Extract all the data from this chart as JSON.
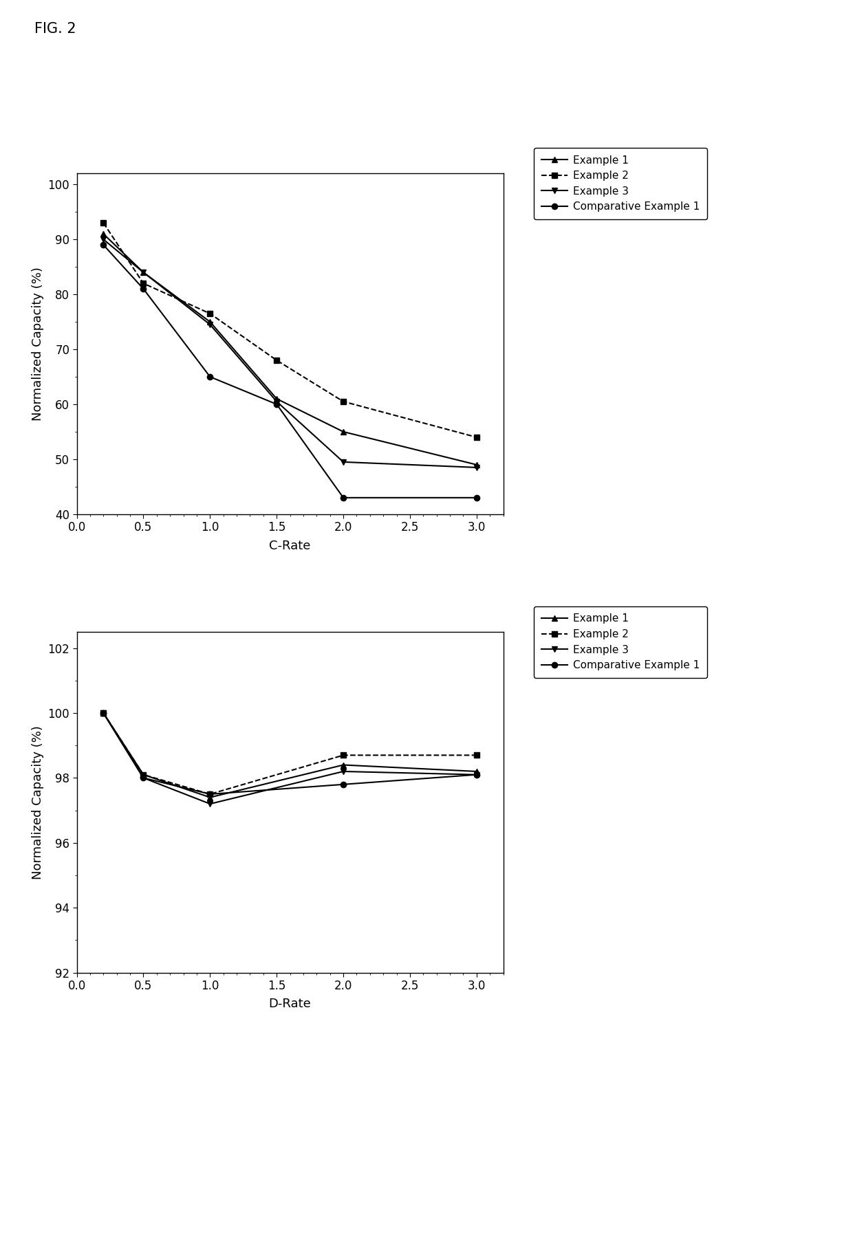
{
  "chart1": {
    "xlabel": "C-Rate",
    "ylabel": "Normalized Capacity (%)",
    "xlim": [
      0.0,
      3.2
    ],
    "ylim": [
      40,
      102
    ],
    "yticks": [
      40,
      50,
      60,
      70,
      80,
      90,
      100
    ],
    "xticks": [
      0.0,
      0.5,
      1.0,
      1.5,
      2.0,
      2.5,
      3.0
    ],
    "series": [
      {
        "label": "Example 1",
        "x": [
          0.2,
          0.5,
          1.0,
          1.5,
          2.0,
          3.0
        ],
        "y": [
          91.0,
          84.0,
          75.0,
          61.0,
          55.0,
          49.0
        ],
        "marker": "^",
        "color": "#000000",
        "linestyle": "-"
      },
      {
        "label": "Example 2",
        "x": [
          0.2,
          0.5,
          1.0,
          1.5,
          2.0,
          3.0
        ],
        "y": [
          93.0,
          82.0,
          76.5,
          68.0,
          60.5,
          54.0
        ],
        "marker": "s",
        "color": "#000000",
        "linestyle": "--"
      },
      {
        "label": "Example 3",
        "x": [
          0.2,
          0.5,
          1.0,
          1.5,
          2.0,
          3.0
        ],
        "y": [
          90.0,
          84.0,
          74.5,
          60.5,
          49.5,
          48.5
        ],
        "marker": "v",
        "color": "#000000",
        "linestyle": "-"
      },
      {
        "label": "Comparative Example 1",
        "x": [
          0.2,
          0.5,
          1.0,
          1.5,
          2.0,
          3.0
        ],
        "y": [
          89.0,
          81.0,
          65.0,
          60.0,
          43.0,
          43.0
        ],
        "marker": "o",
        "color": "#000000",
        "linestyle": "-"
      }
    ]
  },
  "chart2": {
    "xlabel": "D-Rate",
    "ylabel": "Normalized Capacity (%)",
    "xlim": [
      0.0,
      3.2
    ],
    "ylim": [
      92,
      102.5
    ],
    "yticks": [
      92,
      94,
      96,
      98,
      100,
      102
    ],
    "xticks": [
      0.0,
      0.5,
      1.0,
      1.5,
      2.0,
      2.5,
      3.0
    ],
    "series": [
      {
        "label": "Example 1",
        "x": [
          0.2,
          0.5,
          1.0,
          2.0,
          3.0
        ],
        "y": [
          100.0,
          98.1,
          97.4,
          98.4,
          98.2
        ],
        "marker": "^",
        "color": "#000000",
        "linestyle": "-"
      },
      {
        "label": "Example 2",
        "x": [
          0.2,
          0.5,
          1.0,
          2.0,
          3.0
        ],
        "y": [
          100.0,
          98.1,
          97.5,
          98.7,
          98.7
        ],
        "marker": "s",
        "color": "#000000",
        "linestyle": "--"
      },
      {
        "label": "Example 3",
        "x": [
          0.2,
          0.5,
          1.0,
          2.0,
          3.0
        ],
        "y": [
          100.0,
          98.0,
          97.2,
          98.2,
          98.1
        ],
        "marker": "v",
        "color": "#000000",
        "linestyle": "-"
      },
      {
        "label": "Comparative Example 1",
        "x": [
          0.2,
          0.5,
          1.0,
          2.0,
          3.0
        ],
        "y": [
          100.0,
          98.0,
          97.5,
          97.8,
          98.1
        ],
        "marker": "o",
        "color": "#000000",
        "linestyle": "-"
      }
    ]
  },
  "fig_label": "FIG. 2",
  "background_color": "#ffffff",
  "fig_label_fontsize": 15,
  "axis_label_fontsize": 13,
  "tick_fontsize": 12,
  "legend_fontsize": 11
}
